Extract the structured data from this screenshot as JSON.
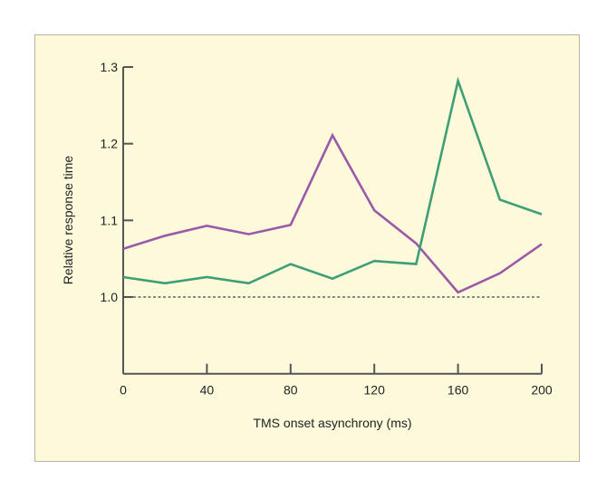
{
  "chart_data": {
    "type": "line",
    "title": "",
    "xlabel": "TMS onset asynchrony (ms)",
    "ylabel": "Relative response time",
    "xlim": [
      0,
      200
    ],
    "ylim": [
      0.9,
      1.3
    ],
    "xticks": [
      0,
      40,
      80,
      120,
      160,
      200
    ],
    "xtick_labels": [
      "0",
      "40",
      "80",
      "120",
      "160",
      "200"
    ],
    "yticks": [
      1.0,
      1.1,
      1.2,
      1.3
    ],
    "ytick_labels": [
      "1.0",
      "1.1",
      "1.2",
      "1.3"
    ],
    "reference_line": {
      "y": 1.0,
      "style": "dashed"
    },
    "grid": false,
    "x": [
      0,
      20,
      40,
      60,
      80,
      100,
      120,
      140,
      160,
      180,
      200
    ],
    "series": [
      {
        "name": "purple",
        "color": "#9b59a8",
        "values": [
          1.063,
          1.08,
          1.093,
          1.082,
          1.094,
          1.211,
          1.113,
          1.07,
          1.006,
          1.031,
          1.069
        ]
      },
      {
        "name": "green",
        "color": "#3f9e76",
        "values": [
          1.026,
          1.018,
          1.026,
          1.018,
          1.043,
          1.024,
          1.047,
          1.043,
          1.282,
          1.127,
          1.108
        ]
      }
    ]
  }
}
